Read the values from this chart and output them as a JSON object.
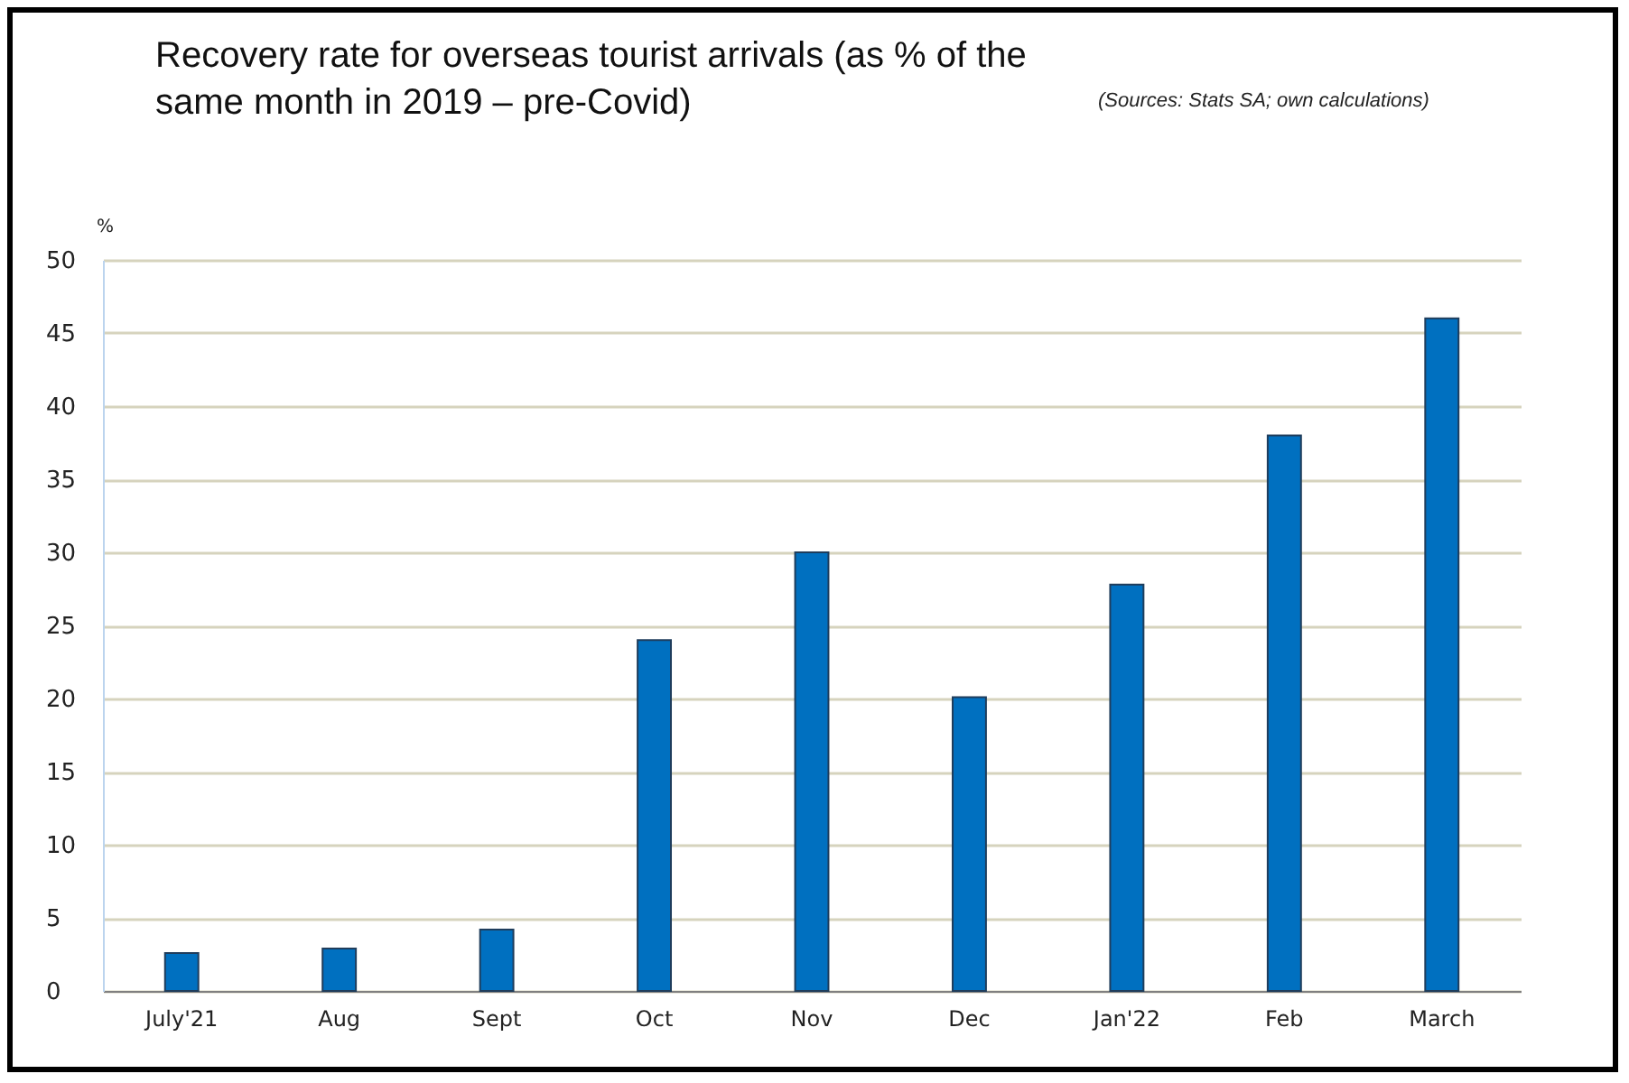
{
  "chart_data": {
    "type": "bar",
    "title": "Recovery rate for overseas tourist arrivals (as % of the same month in 2019 – pre-Covid)",
    "annotations": [
      "(Sources: Stats SA; own calculations)"
    ],
    "ylabel": "%",
    "categories": [
      "July'21",
      "Aug",
      "Sept",
      "Oct",
      "Nov",
      "Dec",
      "Jan'22",
      "Feb",
      "March"
    ],
    "values": [
      2.6,
      2.9,
      4.2,
      24.0,
      30.0,
      20.1,
      27.8,
      38.0,
      46.0
    ],
    "color": "#0070c0",
    "ylim": [
      0,
      50
    ],
    "yticks": [
      0,
      5,
      10,
      15,
      20,
      25,
      30,
      35,
      40,
      45,
      50
    ],
    "grid": "y"
  }
}
